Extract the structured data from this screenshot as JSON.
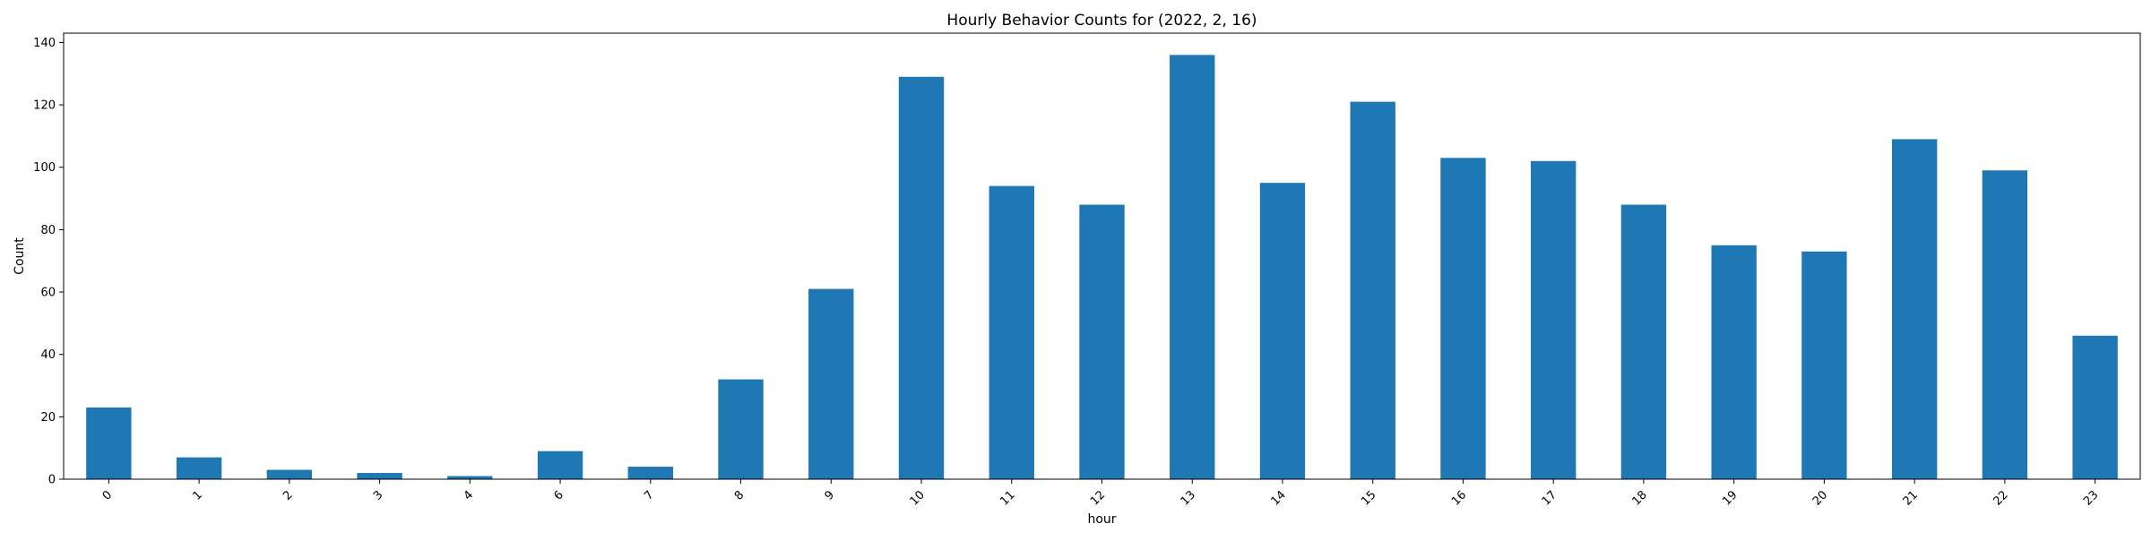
{
  "chart_data": {
    "type": "bar",
    "title": "Hourly Behavior Counts for (2022, 2, 16)",
    "xlabel": "hour",
    "ylabel": "Count",
    "categories": [
      "0",
      "1",
      "2",
      "3",
      "4",
      "6",
      "7",
      "8",
      "9",
      "10",
      "11",
      "12",
      "13",
      "14",
      "15",
      "16",
      "17",
      "18",
      "19",
      "20",
      "21",
      "22",
      "23"
    ],
    "values": [
      23,
      7,
      3,
      2,
      1,
      9,
      4,
      32,
      61,
      129,
      94,
      88,
      136,
      95,
      121,
      103,
      102,
      88,
      75,
      73,
      109,
      99,
      46
    ],
    "ylim": [
      0,
      143
    ],
    "yticks": [
      0,
      20,
      40,
      60,
      80,
      100,
      120,
      140
    ],
    "grid": false,
    "legend": "none",
    "bar_color": "#1f77b4",
    "x_tick_rotation_deg": 45
  }
}
